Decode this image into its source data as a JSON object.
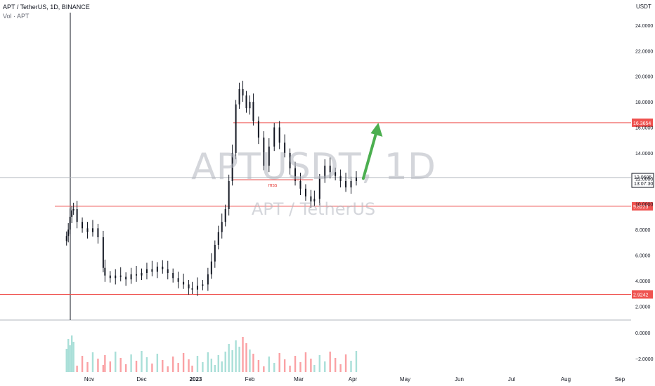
{
  "header": {
    "title": "APT / TetherUS, 1D, BINANCE",
    "volume_label": "Vol · APT"
  },
  "watermark": {
    "symbol": "APTUSDT, 1D",
    "name": "APT / TetherUS"
  },
  "colors": {
    "candle": "#131722",
    "horizontal_line": "#ef5350",
    "arrow": "#4caf50",
    "mss_text": "#e53935",
    "vol_up": "#a9dfd8",
    "vol_down": "#faa1a4",
    "last_price_bg": "#ffffff",
    "last_price_border": "#131722"
  },
  "chart_data": {
    "type": "candlestick",
    "symbol": "APT / TetherUS",
    "interval": "1D",
    "exchange": "BINANCE",
    "price_axis_label": "USDT",
    "price_ticks": [
      "24.0000",
      "22.0000",
      "20.0000",
      "18.0000",
      "16.0000",
      "14.0000",
      "12.0000",
      "10.0000",
      "8.0000",
      "6.0000",
      "4.0000",
      "2.0000"
    ],
    "price_tick_values": [
      24,
      22,
      20,
      18,
      16,
      14,
      12,
      10,
      8,
      6,
      4,
      2
    ],
    "volume_ticks": [
      "0.0000",
      "−2.0000"
    ],
    "x_ticks": [
      "Nov",
      "Dec",
      "2023",
      "Feb",
      "Mar",
      "Apr",
      "May",
      "Jun",
      "Jul",
      "Aug",
      "Sep"
    ],
    "x_tick_dates": [
      "2022-11-01",
      "2022-12-01",
      "2023-01-01",
      "2023-02-01",
      "2023-03-01",
      "2023-04-01",
      "2023-05-01",
      "2023-06-01",
      "2023-07-01",
      "2023-08-01",
      "2023-09-01"
    ],
    "ylim": [
      1,
      25
    ],
    "candles_approx_closes": [
      {
        "date": "2022-10-19",
        "close": 7.5
      },
      {
        "date": "2022-10-20",
        "close": 8.0
      },
      {
        "date": "2022-10-21",
        "close": 9.0
      },
      {
        "date": "2022-10-22",
        "close": 9.5
      },
      {
        "date": "2022-10-23",
        "close": 9.6
      },
      {
        "date": "2022-10-25",
        "close": 8.6
      },
      {
        "date": "2022-10-28",
        "close": 8.1
      },
      {
        "date": "2022-10-31",
        "close": 7.8
      },
      {
        "date": "2022-11-03",
        "close": 8.1
      },
      {
        "date": "2022-11-06",
        "close": 7.4
      },
      {
        "date": "2022-11-09",
        "close": 5.0
      },
      {
        "date": "2022-11-10",
        "close": 4.4
      },
      {
        "date": "2022-11-13",
        "close": 4.2
      },
      {
        "date": "2022-11-16",
        "close": 4.4
      },
      {
        "date": "2022-11-19",
        "close": 4.3
      },
      {
        "date": "2022-11-22",
        "close": 4.1
      },
      {
        "date": "2022-11-25",
        "close": 4.5
      },
      {
        "date": "2022-11-28",
        "close": 4.4
      },
      {
        "date": "2022-12-01",
        "close": 4.6
      },
      {
        "date": "2022-12-04",
        "close": 4.9
      },
      {
        "date": "2022-12-07",
        "close": 4.7
      },
      {
        "date": "2022-12-10",
        "close": 5.1
      },
      {
        "date": "2022-12-13",
        "close": 4.9
      },
      {
        "date": "2022-12-16",
        "close": 4.6
      },
      {
        "date": "2022-12-19",
        "close": 4.2
      },
      {
        "date": "2022-12-22",
        "close": 3.9
      },
      {
        "date": "2022-12-25",
        "close": 3.7
      },
      {
        "date": "2022-12-28",
        "close": 3.4
      },
      {
        "date": "2022-12-30",
        "close": 3.3
      },
      {
        "date": "2023-01-02",
        "close": 3.6
      },
      {
        "date": "2023-01-05",
        "close": 3.7
      },
      {
        "date": "2023-01-08",
        "close": 4.5
      },
      {
        "date": "2023-01-10",
        "close": 5.5
      },
      {
        "date": "2023-01-12",
        "close": 6.8
      },
      {
        "date": "2023-01-14",
        "close": 7.8
      },
      {
        "date": "2023-01-16",
        "close": 8.6
      },
      {
        "date": "2023-01-18",
        "close": 9.6
      },
      {
        "date": "2023-01-20",
        "close": 11.8
      },
      {
        "date": "2023-01-22",
        "close": 14.0
      },
      {
        "date": "2023-01-24",
        "close": 17.8
      },
      {
        "date": "2023-01-26",
        "close": 19.0
      },
      {
        "date": "2023-01-28",
        "close": 18.5
      },
      {
        "date": "2023-01-30",
        "close": 17.5
      },
      {
        "date": "2023-02-01",
        "close": 18.0
      },
      {
        "date": "2023-02-03",
        "close": 16.5
      },
      {
        "date": "2023-02-06",
        "close": 15.2
      },
      {
        "date": "2023-02-09",
        "close": 13.0
      },
      {
        "date": "2023-02-12",
        "close": 14.5
      },
      {
        "date": "2023-02-15",
        "close": 16.0
      },
      {
        "date": "2023-02-18",
        "close": 14.8
      },
      {
        "date": "2023-02-21",
        "close": 14.0
      },
      {
        "date": "2023-02-24",
        "close": 12.8
      },
      {
        "date": "2023-02-27",
        "close": 11.8
      },
      {
        "date": "2023-03-02",
        "close": 11.2
      },
      {
        "date": "2023-03-05",
        "close": 10.6
      },
      {
        "date": "2023-03-08",
        "close": 10.2
      },
      {
        "date": "2023-03-10",
        "close": 10.4
      },
      {
        "date": "2023-03-13",
        "close": 12.0
      },
      {
        "date": "2023-03-16",
        "close": 13.0
      },
      {
        "date": "2023-03-19",
        "close": 12.5
      },
      {
        "date": "2023-03-22",
        "close": 12.2
      },
      {
        "date": "2023-03-25",
        "close": 11.8
      },
      {
        "date": "2023-03-28",
        "close": 11.3
      },
      {
        "date": "2023-03-31",
        "close": 11.8
      },
      {
        "date": "2023-04-03",
        "close": 12.07
      }
    ],
    "volume_approx_bars": "approximate daily volume bars (unlabeled values), peaks near late Oct 2022 and late Jan 2023",
    "horizontal_levels": [
      {
        "value": 16.3654,
        "label": "16.3654"
      },
      {
        "value": 9.8223,
        "label": "9.8223"
      },
      {
        "value": 2.9242,
        "label": "2.9242"
      }
    ],
    "mss_level": {
      "value": 11.9,
      "text": "mss"
    },
    "last_price": {
      "value": "12.0695",
      "countdown": "13:07:30",
      "level": 12.0695
    },
    "arrow": {
      "from_date": "2023-04-03",
      "from_price": 12.0,
      "to_date": "2023-04-08",
      "to_price": 16.3654
    }
  }
}
